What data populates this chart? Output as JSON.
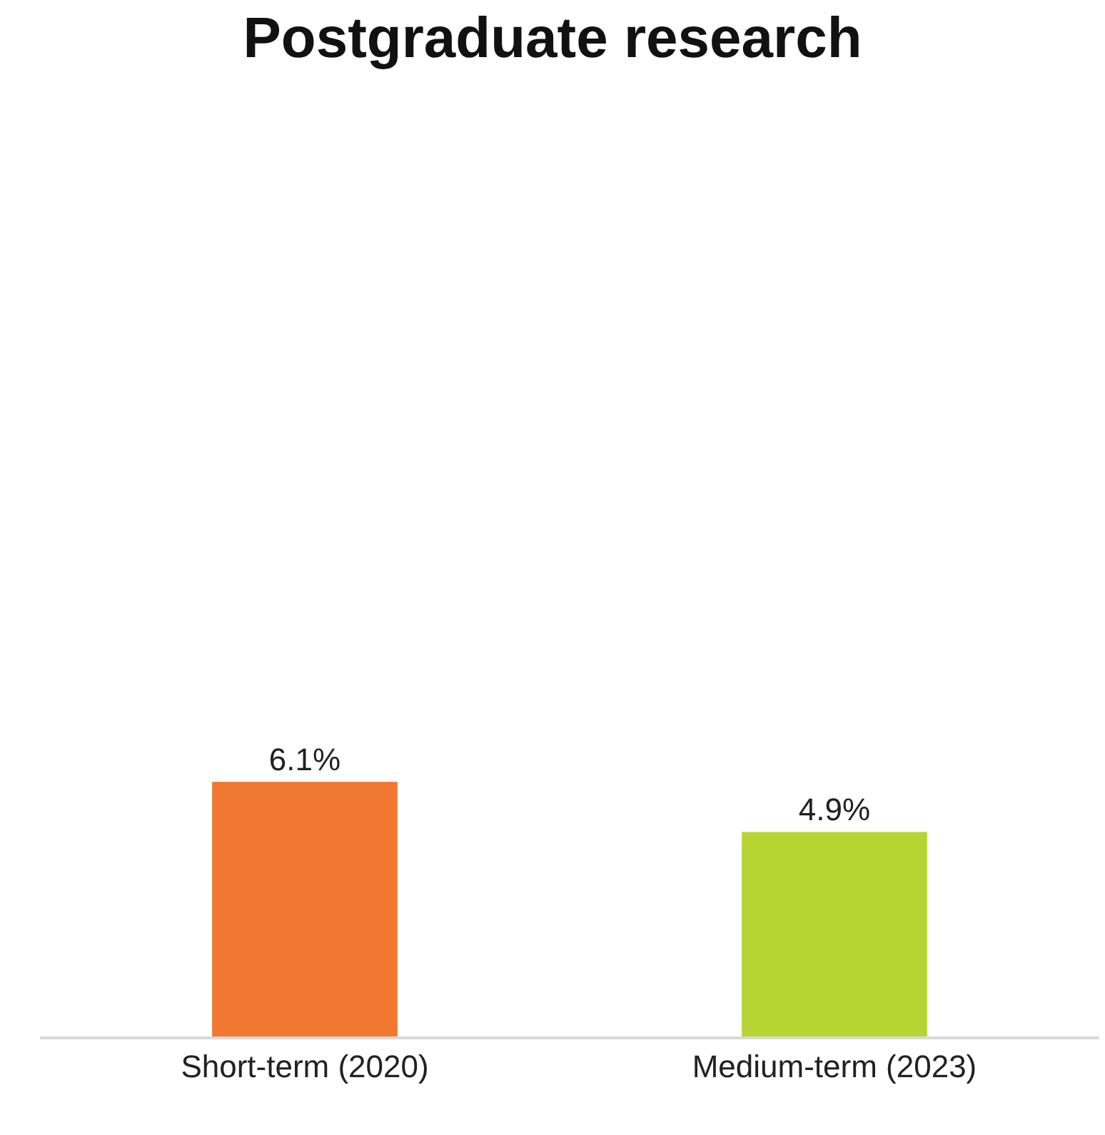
{
  "chart_data": {
    "type": "bar",
    "title": "Postgraduate research",
    "categories": [
      "Short-term (2020)",
      "Medium-term (2023)"
    ],
    "values": [
      6.1,
      4.9
    ],
    "colors": [
      "#f07830",
      "#b8d432"
    ],
    "value_labels": [
      "6.1%",
      "4.9%"
    ],
    "tick_labels": "x"
  }
}
